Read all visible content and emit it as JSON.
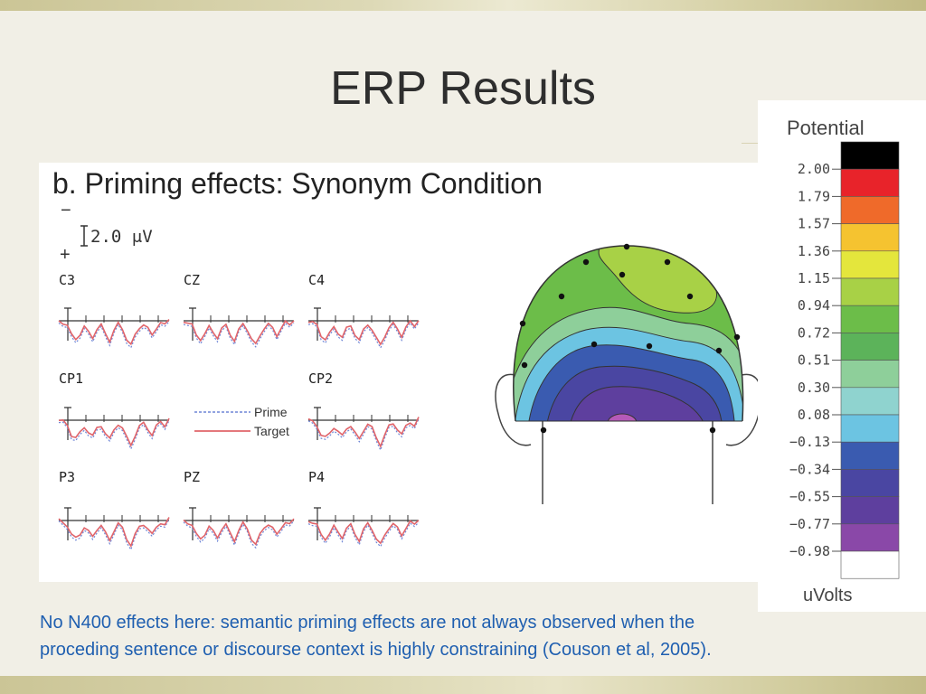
{
  "slide": {
    "title": "ERP Results",
    "caption_line1": "No N400 effects here: semantic priming effects are not always observed when the",
    "caption_line2": "proceding sentence or discourse context is highly constraining (Couson et al, 2005)."
  },
  "figure": {
    "panel_title": "b.  Priming effects: Synonym Condition",
    "scale_minus": "−",
    "scale_label": "2.0 μV",
    "scale_plus": "+",
    "electrodes": [
      "C3",
      "CZ",
      "C4",
      "CP1",
      "CP2",
      "P3",
      "PZ",
      "P4"
    ],
    "series_legend": [
      "Prime",
      "Target"
    ],
    "colors": {
      "prime": "#6f86d6",
      "target": "#e0646a"
    }
  },
  "colorbar": {
    "title": "Potential",
    "unit": "uVolts",
    "ticks": [
      "2.00",
      "1.79",
      "1.57",
      "1.36",
      "1.15",
      "0.94",
      "0.72",
      "0.51",
      "0.30",
      "0.08",
      "−0.13",
      "−0.34",
      "−0.55",
      "−0.77",
      "−0.98"
    ],
    "colors": [
      "#000000",
      "#e8232a",
      "#ef6a2a",
      "#f5c330",
      "#e4e63c",
      "#a8d146",
      "#6cbd49",
      "#5cb35a",
      "#8ecf9a",
      "#8fd3cf",
      "#6cc4e2",
      "#3a5bb0",
      "#4a46a2",
      "#5e3f9e",
      "#8a48a8",
      "#ffffff"
    ]
  }
}
